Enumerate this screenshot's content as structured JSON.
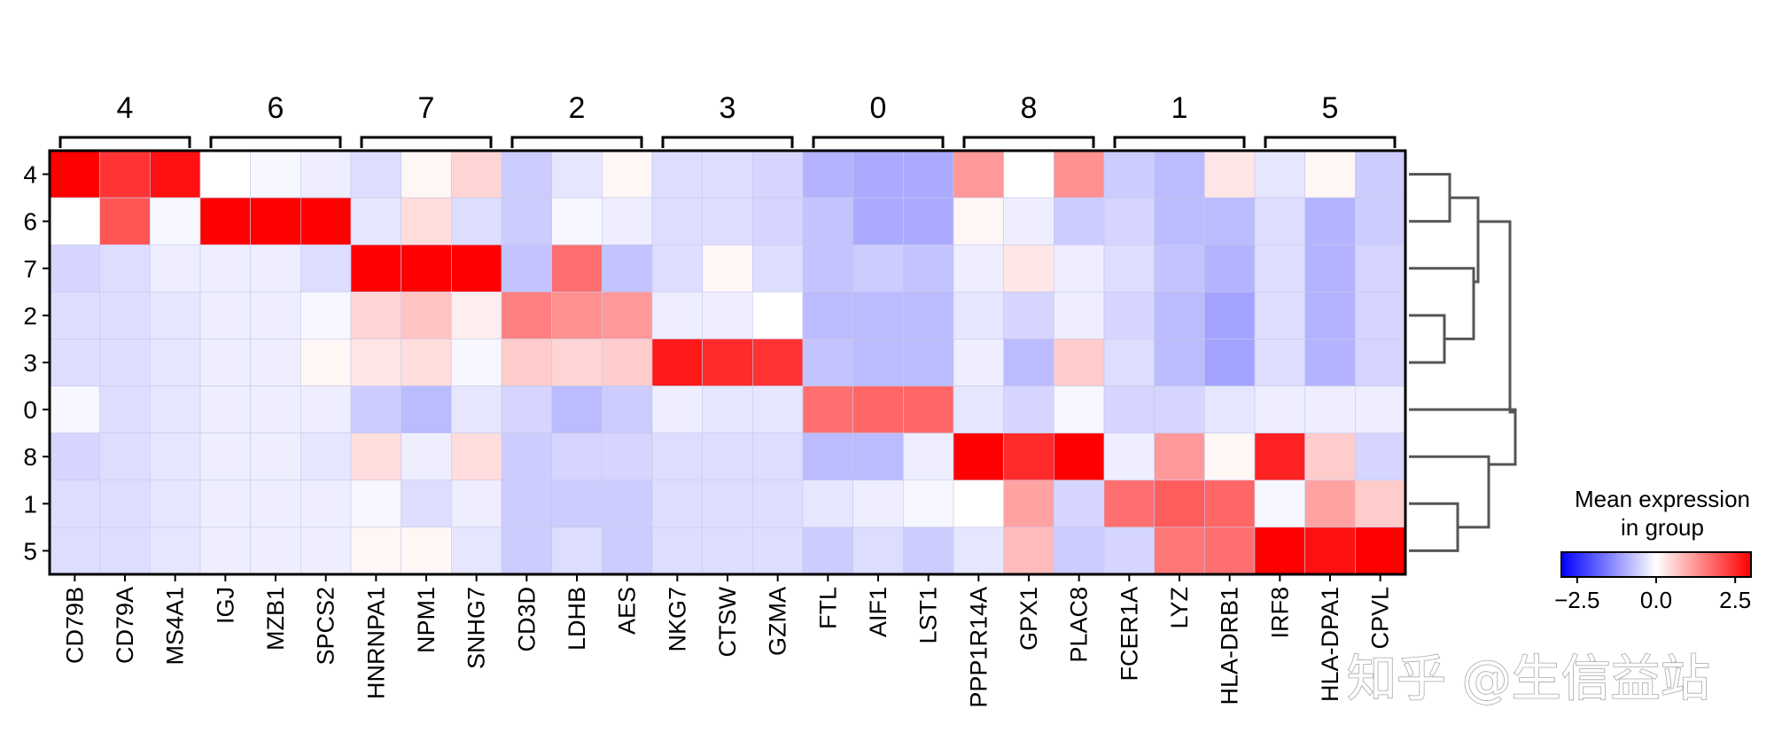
{
  "chart_data": {
    "type": "heatmap",
    "title": "",
    "xlabel": "",
    "ylabel": "",
    "groups": [
      {
        "label": "4",
        "genes": [
          "CD79B",
          "CD79A",
          "MS4A1"
        ]
      },
      {
        "label": "6",
        "genes": [
          "IGJ",
          "MZB1",
          "SPCS2"
        ]
      },
      {
        "label": "7",
        "genes": [
          "HNRNPA1",
          "NPM1",
          "SNHG7"
        ]
      },
      {
        "label": "2",
        "genes": [
          "CD3D",
          "LDHB",
          "AES"
        ]
      },
      {
        "label": "3",
        "genes": [
          "NKG7",
          "CTSW",
          "GZMA"
        ]
      },
      {
        "label": "0",
        "genes": [
          "FTL",
          "AIF1",
          "LST1"
        ]
      },
      {
        "label": "8",
        "genes": [
          "PPP1R14A",
          "GPX1",
          "PLAC8"
        ]
      },
      {
        "label": "1",
        "genes": [
          "FCER1A",
          "LYZ",
          "HLA-DRB1"
        ]
      },
      {
        "label": "5",
        "genes": [
          "IRF8",
          "HLA-DPA1",
          "CPVL"
        ]
      }
    ],
    "columns": [
      "CD79B",
      "CD79A",
      "MS4A1",
      "IGJ",
      "MZB1",
      "SPCS2",
      "HNRNPA1",
      "NPM1",
      "SNHG7",
      "CD3D",
      "LDHB",
      "AES",
      "NKG7",
      "CTSW",
      "GZMA",
      "FTL",
      "AIF1",
      "LST1",
      "PPP1R14A",
      "GPX1",
      "PLAC8",
      "FCER1A",
      "LYZ",
      "HLA-DRB1",
      "IRF8",
      "HLA-DPA1",
      "CPVL"
    ],
    "rows": [
      "4",
      "6",
      "7",
      "2",
      "3",
      "0",
      "8",
      "1",
      "5"
    ],
    "values": [
      [
        3.0,
        2.4,
        2.8,
        0.0,
        -0.1,
        -0.2,
        -0.4,
        0.1,
        0.5,
        -0.6,
        -0.3,
        0.1,
        -0.4,
        -0.4,
        -0.5,
        -0.9,
        -1.0,
        -1.0,
        1.2,
        0.0,
        1.3,
        -0.6,
        -0.8,
        0.3,
        -0.3,
        0.1,
        -0.6
      ],
      [
        0.0,
        2.0,
        -0.1,
        3.0,
        3.0,
        3.0,
        -0.3,
        0.4,
        -0.4,
        -0.6,
        -0.1,
        -0.2,
        -0.4,
        -0.4,
        -0.5,
        -0.7,
        -1.0,
        -1.0,
        0.1,
        -0.2,
        -0.6,
        -0.5,
        -0.8,
        -0.8,
        -0.4,
        -0.9,
        -0.6
      ],
      [
        -0.5,
        -0.4,
        -0.2,
        -0.2,
        -0.2,
        -0.4,
        3.0,
        3.0,
        3.0,
        -0.7,
        1.7,
        -0.7,
        -0.4,
        0.1,
        -0.4,
        -0.7,
        -0.6,
        -0.7,
        -0.2,
        0.3,
        -0.2,
        -0.4,
        -0.7,
        -0.9,
        -0.4,
        -0.9,
        -0.5
      ],
      [
        -0.4,
        -0.4,
        -0.3,
        -0.2,
        -0.2,
        -0.1,
        0.5,
        0.7,
        0.2,
        1.5,
        1.3,
        1.2,
        -0.2,
        -0.2,
        0.0,
        -0.8,
        -0.8,
        -0.8,
        -0.3,
        -0.5,
        -0.2,
        -0.5,
        -0.8,
        -1.1,
        -0.4,
        -0.9,
        -0.5
      ],
      [
        -0.4,
        -0.4,
        -0.3,
        -0.2,
        -0.2,
        0.1,
        0.3,
        0.4,
        -0.1,
        0.6,
        0.5,
        0.6,
        2.7,
        2.5,
        2.4,
        -0.7,
        -0.8,
        -0.8,
        -0.2,
        -0.8,
        0.6,
        -0.4,
        -0.8,
        -1.1,
        -0.4,
        -0.9,
        -0.5
      ],
      [
        -0.1,
        -0.4,
        -0.3,
        -0.2,
        -0.2,
        -0.2,
        -0.6,
        -0.8,
        -0.3,
        -0.5,
        -0.8,
        -0.6,
        -0.2,
        -0.3,
        -0.3,
        1.7,
        1.8,
        1.8,
        -0.3,
        -0.5,
        -0.1,
        -0.5,
        -0.5,
        -0.3,
        -0.2,
        -0.2,
        -0.2
      ],
      [
        -0.5,
        -0.4,
        -0.3,
        -0.2,
        -0.2,
        -0.3,
        0.4,
        -0.2,
        0.4,
        -0.6,
        -0.5,
        -0.5,
        -0.4,
        -0.4,
        -0.4,
        -0.8,
        -0.8,
        -0.2,
        3.0,
        2.5,
        3.0,
        -0.2,
        1.2,
        0.1,
        2.6,
        0.6,
        -0.5
      ],
      [
        -0.4,
        -0.4,
        -0.3,
        -0.2,
        -0.2,
        -0.2,
        -0.1,
        -0.4,
        -0.2,
        -0.6,
        -0.6,
        -0.6,
        -0.4,
        -0.4,
        -0.4,
        -0.3,
        -0.2,
        -0.1,
        0.0,
        1.1,
        -0.5,
        1.7,
        1.9,
        1.8,
        -0.1,
        1.1,
        0.6
      ],
      [
        -0.4,
        -0.4,
        -0.3,
        -0.2,
        -0.2,
        -0.2,
        0.1,
        0.1,
        -0.3,
        -0.6,
        -0.4,
        -0.6,
        -0.4,
        -0.4,
        -0.4,
        -0.6,
        -0.4,
        -0.6,
        -0.3,
        0.8,
        -0.6,
        -0.5,
        1.6,
        1.7,
        3.0,
        2.8,
        3.0
      ]
    ],
    "color_scale": {
      "type": "diverging",
      "min": -3,
      "max": 3,
      "colors": [
        "#0000ff",
        "#ffffff",
        "#ff0000"
      ]
    },
    "colorbar": {
      "title_line1": "Mean expression",
      "title_line2": "in group",
      "ticks": [
        "−2.5",
        "0.0",
        "2.5"
      ],
      "tick_values": [
        -2.5,
        0.0,
        2.5
      ],
      "placement": "bottom-right"
    },
    "dendrogram": {
      "placement": "right",
      "leaf_order": [
        "4",
        "6",
        "7",
        "2",
        "3",
        "0",
        "8",
        "1",
        "5"
      ]
    }
  },
  "watermark": {
    "text": "知乎 @生信益站"
  },
  "colors": {
    "frame": "#000000",
    "dendrogram": "#555555",
    "cell_border": "#c8c8e8"
  }
}
